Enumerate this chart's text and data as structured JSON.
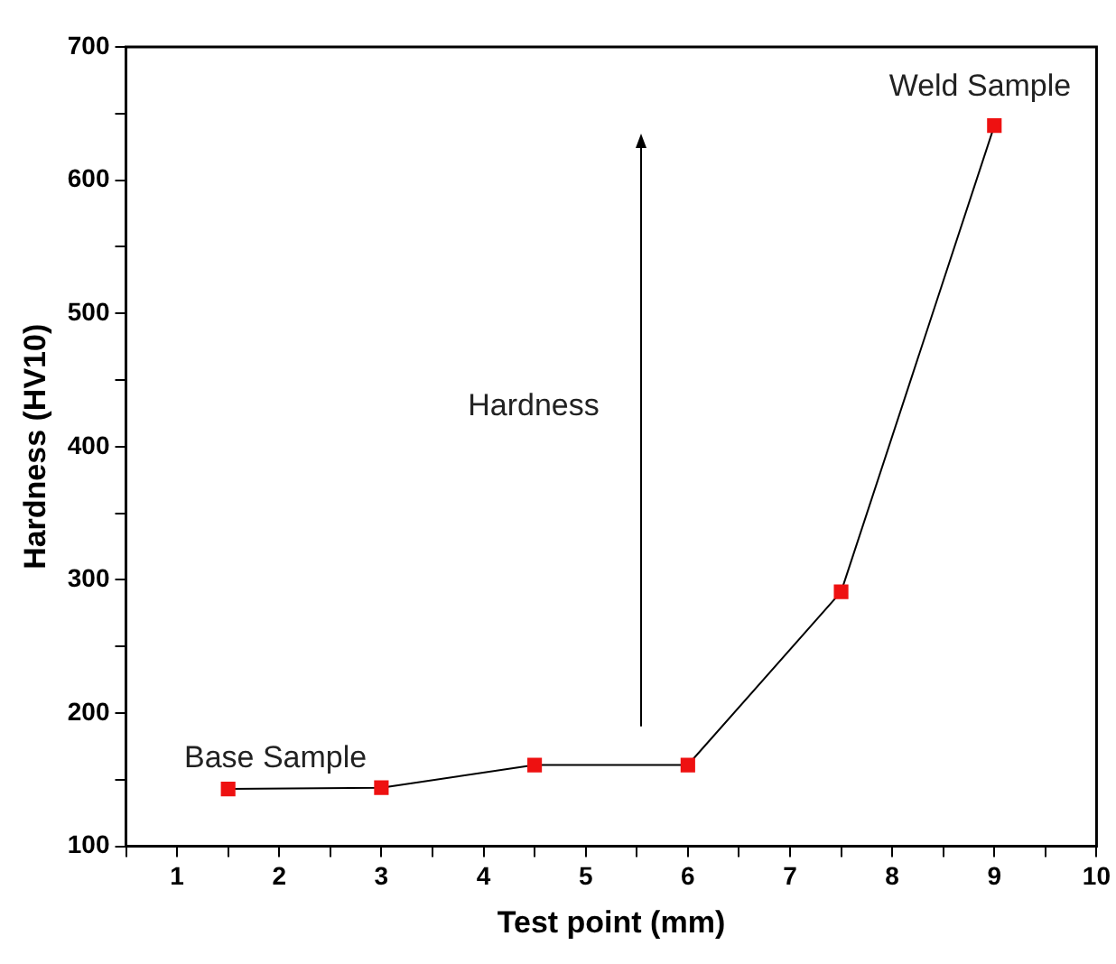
{
  "chart_data": {
    "type": "line",
    "xlabel": "Test point (mm)",
    "ylabel": "Hardness (HV10)",
    "x": [
      1.5,
      3,
      4.5,
      6,
      7.5,
      9
    ],
    "series": [
      {
        "color": "#ee1111",
        "values": [
          143,
          144,
          161,
          161,
          291,
          641
        ]
      }
    ],
    "xlim": [
      0.5,
      10
    ],
    "xticks": [
      {
        "value": 0.5,
        "label": null
      },
      1,
      {
        "value": 1.5,
        "label": null
      },
      2,
      {
        "value": 2.5,
        "label": null
      },
      3,
      {
        "value": 3.5,
        "label": null
      },
      4,
      {
        "value": 4.5,
        "label": null
      },
      5,
      {
        "value": 5.5,
        "label": null
      },
      6,
      {
        "value": 6.5,
        "label": null
      },
      7,
      {
        "value": 7.5,
        "label": null
      },
      8,
      {
        "value": 8.5,
        "label": null
      },
      9,
      {
        "value": 9.5,
        "label": null
      },
      10
    ],
    "ylim": [
      100,
      700
    ],
    "yticks": [
      100,
      {
        "value": 150,
        "label": null
      },
      200,
      {
        "value": 250,
        "label": null
      },
      300,
      {
        "value": 350,
        "label": null
      },
      400,
      {
        "value": 450,
        "label": null
      },
      500,
      {
        "value": 550,
        "label": null
      },
      600,
      {
        "value": 650,
        "label": null
      },
      700
    ],
    "grid": false,
    "legend": false,
    "marker": "square",
    "line_style": "solid",
    "annotations": [
      "Base Sample",
      "Weld Sample",
      "Hardness"
    ]
  }
}
